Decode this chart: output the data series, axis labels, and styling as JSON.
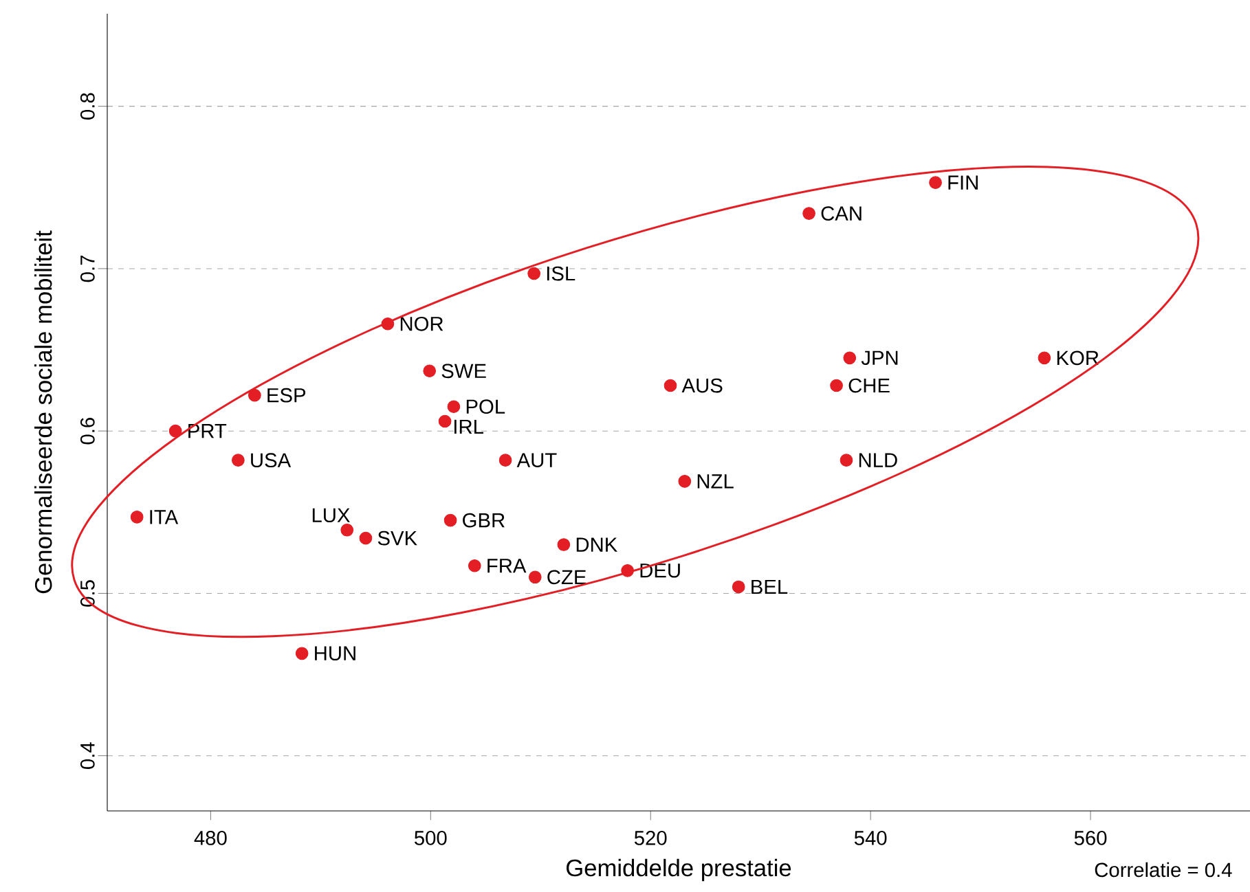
{
  "chart_data": {
    "type": "scatter",
    "xlabel": "Gemiddelde prestatie",
    "ylabel": "Genormaliseerde sociale mobiliteit",
    "x": [
      545.9,
      534.4,
      509.4,
      496.1,
      499.9,
      502.1,
      501.3,
      484.0,
      476.8,
      482.5,
      473.3,
      492.4,
      494.1,
      501.8,
      504.0,
      509.5,
      512.1,
      517.9,
      528.0,
      488.3,
      506.8,
      521.8,
      523.1,
      538.1,
      536.9,
      537.8,
      555.8
    ],
    "values": [
      0.753,
      0.734,
      0.697,
      0.666,
      0.637,
      0.615,
      0.606,
      0.622,
      0.6,
      0.582,
      0.547,
      0.539,
      0.534,
      0.545,
      0.517,
      0.51,
      0.53,
      0.514,
      0.504,
      0.463,
      0.582,
      0.628,
      0.569,
      0.645,
      0.628,
      0.582,
      0.645
    ],
    "color": "#e31e24",
    "marker": "circle",
    "xlim": [
      470.6,
      574.5
    ],
    "ylim": [
      0.366,
      0.857
    ],
    "xticks": [
      480,
      500,
      520,
      540,
      560
    ],
    "yticks": [
      0.4,
      0.5,
      0.6,
      0.7,
      0.8
    ],
    "grid": "y",
    "annotations": [
      {
        "text": "FIN",
        "x": 545.9,
        "y": 0.753
      },
      {
        "text": "CAN",
        "x": 534.4,
        "y": 0.734
      },
      {
        "text": "ISL",
        "x": 509.4,
        "y": 0.697
      },
      {
        "text": "NOR",
        "x": 496.1,
        "y": 0.666
      },
      {
        "text": "SWE",
        "x": 499.9,
        "y": 0.637
      },
      {
        "text": "POL",
        "x": 502.1,
        "y": 0.615
      },
      {
        "text": "IRL",
        "x": 501.3,
        "y": 0.606
      },
      {
        "text": "ESP",
        "x": 484.0,
        "y": 0.622
      },
      {
        "text": "PRT",
        "x": 476.8,
        "y": 0.6
      },
      {
        "text": "USA",
        "x": 482.5,
        "y": 0.582
      },
      {
        "text": "ITA",
        "x": 473.3,
        "y": 0.547
      },
      {
        "text": "LUX",
        "x": 492.4,
        "y": 0.539
      },
      {
        "text": "SVK",
        "x": 494.1,
        "y": 0.534
      },
      {
        "text": "GBR",
        "x": 501.8,
        "y": 0.545
      },
      {
        "text": "FRA",
        "x": 504.0,
        "y": 0.517
      },
      {
        "text": "CZE",
        "x": 509.5,
        "y": 0.51
      },
      {
        "text": "DNK",
        "x": 512.1,
        "y": 0.53
      },
      {
        "text": "DEU",
        "x": 517.9,
        "y": 0.514
      },
      {
        "text": "BEL",
        "x": 528.0,
        "y": 0.504
      },
      {
        "text": "HUN",
        "x": 488.3,
        "y": 0.463
      },
      {
        "text": "AUT",
        "x": 506.8,
        "y": 0.582
      },
      {
        "text": "AUS",
        "x": 521.8,
        "y": 0.628
      },
      {
        "text": "NZL",
        "x": 523.1,
        "y": 0.569
      },
      {
        "text": "JPN",
        "x": 538.1,
        "y": 0.645
      },
      {
        "text": "CHE",
        "x": 536.9,
        "y": 0.628
      },
      {
        "text": "NLD",
        "x": 537.8,
        "y": 0.582
      },
      {
        "text": "KOR",
        "x": 555.8,
        "y": 0.645
      },
      "Correlatie = 0.4"
    ]
  }
}
